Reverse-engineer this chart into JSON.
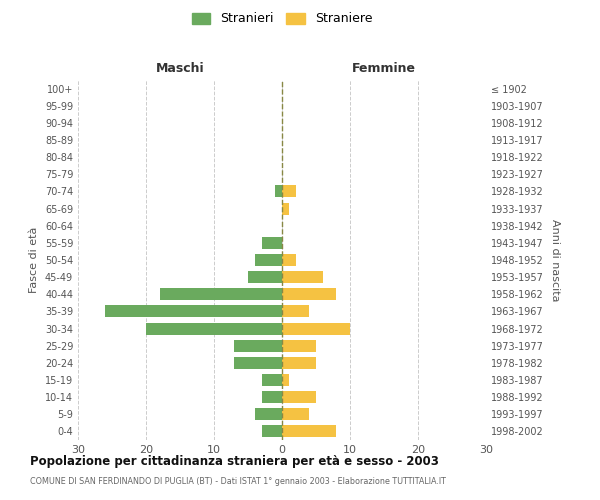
{
  "age_groups": [
    "0-4",
    "5-9",
    "10-14",
    "15-19",
    "20-24",
    "25-29",
    "30-34",
    "35-39",
    "40-44",
    "45-49",
    "50-54",
    "55-59",
    "60-64",
    "65-69",
    "70-74",
    "75-79",
    "80-84",
    "85-89",
    "90-94",
    "95-99",
    "100+"
  ],
  "birth_years": [
    "1998-2002",
    "1993-1997",
    "1988-1992",
    "1983-1987",
    "1978-1982",
    "1973-1977",
    "1968-1972",
    "1963-1967",
    "1958-1962",
    "1953-1957",
    "1948-1952",
    "1943-1947",
    "1938-1942",
    "1933-1937",
    "1928-1932",
    "1923-1927",
    "1918-1922",
    "1913-1917",
    "1908-1912",
    "1903-1907",
    "≤ 1902"
  ],
  "maschi": [
    3,
    4,
    3,
    3,
    7,
    7,
    20,
    26,
    18,
    5,
    4,
    3,
    0,
    0,
    1,
    0,
    0,
    0,
    0,
    0,
    0
  ],
  "femmine": [
    8,
    4,
    5,
    1,
    5,
    5,
    10,
    4,
    8,
    6,
    2,
    0,
    0,
    1,
    2,
    0,
    0,
    0,
    0,
    0,
    0
  ],
  "color_maschi": "#6aaa5e",
  "color_femmine": "#f5c242",
  "title": "Popolazione per cittadinanza straniera per età e sesso - 2003",
  "subtitle": "COMUNE DI SAN FERDINANDO DI PUGLIA (BT) - Dati ISTAT 1° gennaio 2003 - Elaborazione TUTTITALIA.IT",
  "label_maschi": "Maschi",
  "label_femmine": "Femmine",
  "ylabel_left": "Fasce di età",
  "ylabel_right": "Anni di nascita",
  "legend_maschi": "Stranieri",
  "legend_femmine": "Straniere",
  "xlim": 30,
  "background_color": "#ffffff",
  "grid_color": "#cccccc"
}
